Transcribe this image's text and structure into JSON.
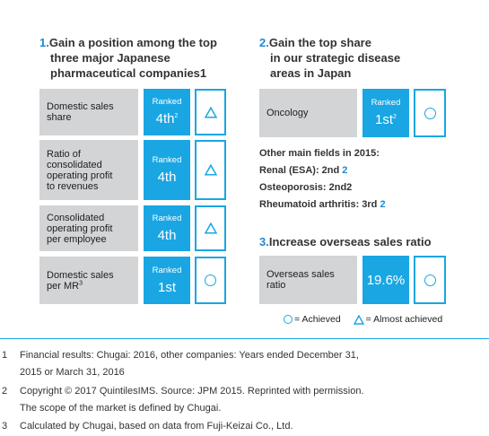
{
  "section1": {
    "number": "1.",
    "title_lines": [
      "Gain a position among the top",
      "three major Japanese",
      "pharmaceutical companies1"
    ],
    "rows": [
      {
        "label_lines": [
          "Domestic sales",
          "share"
        ],
        "label_sup": "",
        "rank_label": "Ranked",
        "rank_value": "4th",
        "rank_sup": "2",
        "status": "almost-achieved-icon"
      },
      {
        "label_lines": [
          "Ratio of",
          "consolidated",
          "operating profit",
          "to revenues"
        ],
        "label_sup": "",
        "rank_label": "Ranked",
        "rank_value": "4th",
        "rank_sup": "",
        "status": "almost-achieved-icon"
      },
      {
        "label_lines": [
          "Consolidated",
          "operating profit",
          "per employee"
        ],
        "label_sup": "",
        "rank_label": "Ranked",
        "rank_value": "4th",
        "rank_sup": "",
        "status": "almost-achieved-icon"
      },
      {
        "label_lines": [
          "Domestic sales",
          "per MR"
        ],
        "label_sup": "3",
        "rank_label": "Ranked",
        "rank_value": "1st",
        "rank_sup": "",
        "status": "achieved-icon"
      }
    ]
  },
  "section2": {
    "number": "2.",
    "title_lines": [
      "Gain the top share",
      "in our strategic disease",
      "areas in Japan"
    ],
    "row": {
      "label": "Oncology",
      "rank_label": "Ranked",
      "rank_value": "1st",
      "rank_sup": "2",
      "status": "achieved-icon"
    },
    "fields_title": "Other main fields in 2015:",
    "fields": [
      {
        "text": "Renal (ESA): 2nd ",
        "ref": "2"
      },
      {
        "text": "Osteoporosis: 2nd2",
        "ref": ""
      },
      {
        "text": "Rheumatoid arthritis: 3rd ",
        "ref": "2"
      }
    ]
  },
  "section3": {
    "number": "3.",
    "title": "Increase overseas sales ratio",
    "row": {
      "label_lines": [
        "Overseas sales",
        "ratio"
      ],
      "value": "19.6%",
      "status": "achieved-icon"
    }
  },
  "legend": {
    "achieved": "= Achieved",
    "almost": "= Almost achieved"
  },
  "footnotes": [
    {
      "num": "1",
      "lines": [
        "Financial results: Chugai: 2016, other companies: Years ended December 31,",
        "2015 or March 31, 2016"
      ]
    },
    {
      "num": "2",
      "lines": [
        "Copyright © 2017 QuintilesIMS. Source: JPM 2015. Reprinted with permission.",
        "The scope of the market is defined by Chugai."
      ]
    },
    {
      "num": "3",
      "lines": [
        "Calculated by Chugai, based on data from Fuji-Keizai Co., Ltd."
      ]
    }
  ],
  "colors": {
    "accent": "#19a6e3",
    "label_bg": "#d3d4d6",
    "number": "#1a8ad4"
  }
}
